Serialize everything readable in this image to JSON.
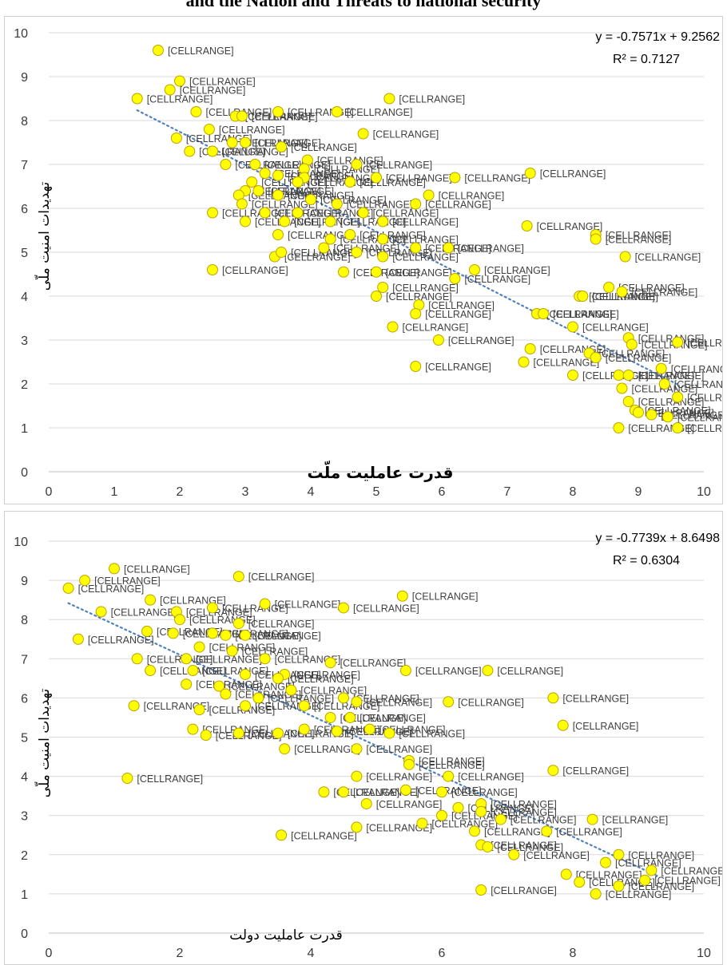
{
  "page_title": "and the Nation and Threats to national security",
  "chart_data": [
    {
      "type": "scatter",
      "title": "",
      "xlabel": "قدرت عاملیت ملّت",
      "ylabel": "تهدیدات امنیت ملّی",
      "xlim": [
        0,
        10
      ],
      "ylim": [
        0,
        10
      ],
      "xticks": [
        0,
        1,
        2,
        3,
        4,
        5,
        6,
        7,
        8,
        9,
        10
      ],
      "yticks": [
        0,
        1,
        2,
        3,
        4,
        5,
        6,
        7,
        8,
        9,
        10
      ],
      "grid": "horizontal",
      "point_label": "[CELLRANGE]",
      "trendline": {
        "slope": -0.7571,
        "intercept": 9.2562,
        "equation": "y = -0.7571x + 9.2562",
        "r2": "R² = 0.7127"
      },
      "points": [
        [
          1.67,
          9.6
        ],
        [
          2.0,
          8.9
        ],
        [
          1.85,
          8.7
        ],
        [
          1.35,
          8.5
        ],
        [
          5.2,
          8.5
        ],
        [
          2.25,
          8.2
        ],
        [
          2.85,
          8.1
        ],
        [
          2.95,
          8.1
        ],
        [
          3.5,
          8.2
        ],
        [
          4.4,
          8.2
        ],
        [
          2.45,
          7.8
        ],
        [
          4.8,
          7.7
        ],
        [
          1.95,
          7.6
        ],
        [
          2.8,
          7.5
        ],
        [
          3.0,
          7.5
        ],
        [
          3.55,
          7.4
        ],
        [
          2.15,
          7.3
        ],
        [
          2.5,
          7.3
        ],
        [
          3.95,
          7.1
        ],
        [
          4.7,
          7.0
        ],
        [
          2.7,
          7.0
        ],
        [
          3.15,
          7.0
        ],
        [
          3.9,
          6.9
        ],
        [
          3.3,
          6.8
        ],
        [
          3.5,
          6.75
        ],
        [
          3.9,
          6.7
        ],
        [
          5.0,
          6.7
        ],
        [
          6.2,
          6.7
        ],
        [
          7.35,
          6.8
        ],
        [
          3.1,
          6.6
        ],
        [
          4.6,
          6.6
        ],
        [
          3.8,
          6.6
        ],
        [
          3.0,
          6.4
        ],
        [
          3.2,
          6.4
        ],
        [
          3.5,
          6.3
        ],
        [
          2.9,
          6.3
        ],
        [
          5.8,
          6.3
        ],
        [
          4.0,
          6.2
        ],
        [
          2.95,
          6.1
        ],
        [
          4.4,
          6.1
        ],
        [
          5.6,
          6.1
        ],
        [
          2.5,
          5.9
        ],
        [
          3.3,
          5.9
        ],
        [
          3.8,
          5.9
        ],
        [
          4.8,
          5.9
        ],
        [
          3.0,
          5.7
        ],
        [
          3.6,
          5.7
        ],
        [
          4.3,
          5.7
        ],
        [
          5.1,
          5.7
        ],
        [
          7.3,
          5.6
        ],
        [
          3.5,
          5.4
        ],
        [
          4.3,
          5.3
        ],
        [
          5.1,
          5.3
        ],
        [
          4.6,
          5.4
        ],
        [
          8.35,
          5.4
        ],
        [
          8.35,
          5.3
        ],
        [
          4.2,
          5.1
        ],
        [
          5.6,
          5.1
        ],
        [
          6.1,
          5.1
        ],
        [
          8.8,
          4.9
        ],
        [
          3.45,
          4.9
        ],
        [
          3.55,
          5.0
        ],
        [
          4.7,
          5.0
        ],
        [
          5.1,
          4.9
        ],
        [
          2.5,
          4.6
        ],
        [
          4.5,
          4.55
        ],
        [
          5.0,
          4.55
        ],
        [
          6.5,
          4.6
        ],
        [
          6.2,
          4.4
        ],
        [
          5.1,
          4.2
        ],
        [
          8.55,
          4.2
        ],
        [
          8.75,
          4.1
        ],
        [
          5.0,
          4.0
        ],
        [
          8.1,
          4.0
        ],
        [
          8.15,
          4.0
        ],
        [
          5.65,
          3.8
        ],
        [
          5.6,
          3.6
        ],
        [
          7.45,
          3.6
        ],
        [
          7.55,
          3.6
        ],
        [
          8.0,
          3.3
        ],
        [
          5.25,
          3.3
        ],
        [
          5.95,
          3.0
        ],
        [
          8.85,
          3.05
        ],
        [
          8.9,
          2.9
        ],
        [
          9.6,
          2.95
        ],
        [
          7.35,
          2.8
        ],
        [
          8.25,
          2.7
        ],
        [
          8.35,
          2.6
        ],
        [
          7.25,
          2.5
        ],
        [
          9.35,
          2.35
        ],
        [
          5.6,
          2.4
        ],
        [
          8.0,
          2.2
        ],
        [
          8.7,
          2.2
        ],
        [
          8.85,
          2.2
        ],
        [
          9.4,
          2.0
        ],
        [
          8.75,
          1.9
        ],
        [
          9.6,
          1.7
        ],
        [
          8.85,
          1.6
        ],
        [
          8.95,
          1.4
        ],
        [
          9.0,
          1.35
        ],
        [
          9.2,
          1.3
        ],
        [
          9.45,
          1.25
        ],
        [
          8.7,
          1.0
        ],
        [
          9.6,
          1.0
        ]
      ]
    },
    {
      "type": "scatter",
      "title": "",
      "xlabel": "قدرت عاملیت دولت",
      "ylabel": "تهدیدات امنیت ملّی",
      "xlim": [
        0,
        10
      ],
      "ylim": [
        0,
        10
      ],
      "xticks": [
        0,
        2,
        4,
        6,
        8,
        10
      ],
      "yticks": [
        0,
        1,
        2,
        3,
        4,
        5,
        6,
        7,
        8,
        9,
        10
      ],
      "grid": "horizontal",
      "point_label": "[CELLRANGE]",
      "trendline": {
        "slope": -0.7739,
        "intercept": 8.6498,
        "equation": "y = -0.7739x + 8.6498",
        "r2": "R² = 0.6304"
      },
      "points": [
        [
          0.3,
          8.8
        ],
        [
          0.55,
          9.0
        ],
        [
          1.0,
          9.3
        ],
        [
          1.55,
          8.5
        ],
        [
          2.9,
          9.1
        ],
        [
          5.4,
          8.6
        ],
        [
          0.8,
          8.2
        ],
        [
          1.95,
          8.2
        ],
        [
          2.5,
          8.3
        ],
        [
          3.3,
          8.4
        ],
        [
          4.5,
          8.3
        ],
        [
          2.0,
          8.0
        ],
        [
          2.9,
          7.9
        ],
        [
          1.5,
          7.7
        ],
        [
          1.9,
          7.65
        ],
        [
          2.5,
          7.65
        ],
        [
          2.7,
          7.6
        ],
        [
          3.0,
          7.6
        ],
        [
          0.45,
          7.5
        ],
        [
          2.3,
          7.3
        ],
        [
          2.8,
          7.2
        ],
        [
          1.35,
          7.0
        ],
        [
          2.1,
          7.0
        ],
        [
          3.3,
          7.0
        ],
        [
          4.3,
          6.9
        ],
        [
          1.55,
          6.7
        ],
        [
          2.2,
          6.7
        ],
        [
          3.0,
          6.6
        ],
        [
          3.6,
          6.6
        ],
        [
          5.45,
          6.7
        ],
        [
          6.7,
          6.7
        ],
        [
          2.6,
          6.3
        ],
        [
          3.7,
          6.2
        ],
        [
          2.7,
          6.1
        ],
        [
          3.2,
          6.0
        ],
        [
          4.5,
          6.0
        ],
        [
          7.7,
          6.0
        ],
        [
          2.1,
          6.35
        ],
        [
          3.5,
          6.5
        ],
        [
          1.3,
          5.8
        ],
        [
          2.3,
          5.7
        ],
        [
          3.0,
          5.8
        ],
        [
          3.9,
          5.8
        ],
        [
          4.7,
          5.9
        ],
        [
          6.1,
          5.9
        ],
        [
          4.3,
          5.5
        ],
        [
          4.6,
          5.5
        ],
        [
          7.85,
          5.3
        ],
        [
          2.2,
          5.2
        ],
        [
          2.9,
          5.1
        ],
        [
          3.5,
          5.1
        ],
        [
          3.9,
          5.2
        ],
        [
          4.4,
          5.15
        ],
        [
          4.9,
          5.2
        ],
        [
          5.2,
          5.1
        ],
        [
          2.4,
          5.05
        ],
        [
          3.6,
          4.7
        ],
        [
          4.7,
          4.7
        ],
        [
          5.5,
          4.4
        ],
        [
          5.5,
          4.3
        ],
        [
          1.2,
          3.95
        ],
        [
          4.7,
          4.0
        ],
        [
          6.1,
          4.0
        ],
        [
          7.7,
          4.15
        ],
        [
          4.2,
          3.6
        ],
        [
          4.5,
          3.6
        ],
        [
          5.45,
          3.65
        ],
        [
          6.0,
          3.6
        ],
        [
          4.85,
          3.3
        ],
        [
          6.25,
          3.2
        ],
        [
          6.6,
          3.3
        ],
        [
          6.0,
          3.0
        ],
        [
          6.6,
          3.1
        ],
        [
          6.9,
          2.9
        ],
        [
          8.3,
          2.9
        ],
        [
          3.55,
          2.5
        ],
        [
          4.7,
          2.7
        ],
        [
          5.7,
          2.8
        ],
        [
          6.5,
          2.6
        ],
        [
          7.6,
          2.6
        ],
        [
          6.6,
          2.25
        ],
        [
          6.7,
          2.2
        ],
        [
          7.1,
          2.0
        ],
        [
          8.7,
          2.0
        ],
        [
          8.5,
          1.8
        ],
        [
          7.9,
          1.5
        ],
        [
          8.1,
          1.3
        ],
        [
          8.7,
          1.2
        ],
        [
          6.6,
          1.1
        ],
        [
          8.35,
          1.0
        ],
        [
          9.2,
          1.6
        ],
        [
          9.1,
          1.35
        ]
      ]
    }
  ]
}
